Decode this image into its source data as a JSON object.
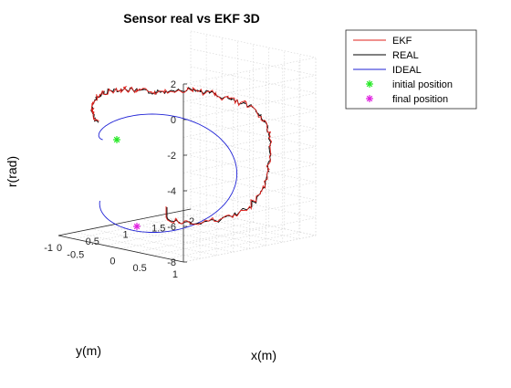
{
  "chart_data": {
    "type": "line3d",
    "title": "Sensor real vs EKF 3D",
    "xlabel": "x(m)",
    "ylabel": "y(m)",
    "zlabel": "r(rad)",
    "xlim": [
      0,
      2
    ],
    "ylim": [
      -1,
      1
    ],
    "zlim": [
      -8,
      2
    ],
    "xticks": [
      "0",
      "0.5",
      "1",
      "1.5",
      "2"
    ],
    "yticks": [
      "-1",
      "-0.5",
      "0",
      "0.5",
      "1"
    ],
    "zticks": [
      "-8",
      "-6",
      "-4",
      "-2",
      "0",
      "2"
    ],
    "grid": true,
    "legend_position": "top-right",
    "series": [
      {
        "name": "EKF",
        "color": "#e0201b",
        "style": "line"
      },
      {
        "name": "REAL",
        "color": "#000000",
        "style": "line"
      },
      {
        "name": "IDEAL",
        "color": "#1f22d6",
        "style": "line"
      },
      {
        "name": "initial position",
        "color": "#22e822",
        "style": "marker-asterisk",
        "point": {
          "x": 0,
          "y": 0,
          "r": -1.1
        }
      },
      {
        "name": "final position",
        "color": "#e021e0",
        "style": "marker-asterisk",
        "point": {
          "x": 0,
          "y": 0,
          "r": -6.1
        }
      }
    ]
  }
}
